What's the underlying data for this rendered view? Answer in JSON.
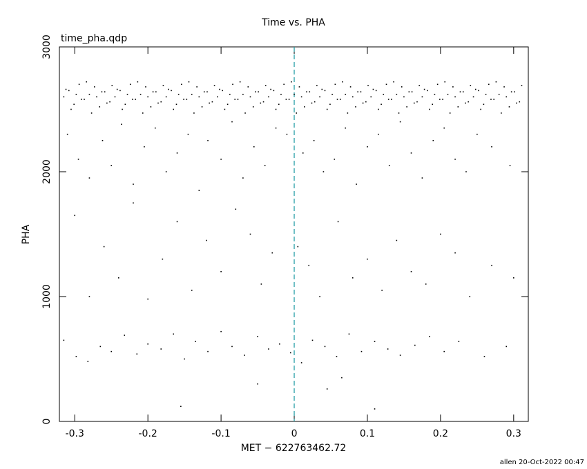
{
  "chart_data": {
    "type": "scatter",
    "title": "Time vs. PHA",
    "subtitle": "time_pha.qdp",
    "x_label": "MET − 622763462.72",
    "y_label": "PHA",
    "footer": "allen 20-Oct-2022 00:47",
    "color": "#000000",
    "xlim": [
      -0.321,
      0.32
    ],
    "ylim": [
      0,
      3000
    ],
    "xticks": [
      -0.3,
      -0.2,
      -0.1,
      0,
      0.1,
      0.2,
      0.3
    ],
    "yticks": [
      0,
      1000,
      2000,
      3000
    ],
    "reference_line": {
      "x": 0,
      "color": "#2aa0a8"
    },
    "x": [
      -0.315,
      -0.308,
      -0.301,
      -0.294,
      -0.287,
      -0.28,
      -0.273,
      -0.266,
      -0.259,
      -0.252,
      -0.245,
      -0.238,
      -0.231,
      -0.224,
      -0.217,
      -0.21,
      -0.203,
      -0.196,
      -0.189,
      -0.182,
      -0.175,
      -0.168,
      -0.161,
      -0.154,
      -0.147,
      -0.14,
      -0.133,
      -0.126,
      -0.119,
      -0.112,
      -0.105,
      -0.098,
      -0.091,
      -0.084,
      -0.077,
      -0.07,
      -0.063,
      -0.056,
      -0.049,
      -0.042,
      -0.035,
      -0.028,
      -0.021,
      -0.014,
      -0.007,
      0,
      0.007,
      0.014,
      0.021,
      0.028,
      0.035,
      0.042,
      0.049,
      0.056,
      0.063,
      0.07,
      0.077,
      0.084,
      0.091,
      0.098,
      0.105,
      0.112,
      0.119,
      0.126,
      0.133,
      0.14,
      0.147,
      0.154,
      0.161,
      0.168,
      0.175,
      0.182,
      0.189,
      0.196,
      0.203,
      0.21,
      0.217,
      0.224,
      0.231,
      0.238,
      0.245,
      0.252,
      0.259,
      0.266,
      0.273,
      0.28,
      0.287,
      0.294,
      0.301,
      0.308,
      -0.312,
      -0.305,
      -0.298,
      -0.291,
      -0.284,
      -0.277,
      -0.27,
      -0.263,
      -0.256,
      -0.249,
      -0.242,
      -0.235,
      -0.228,
      -0.221,
      -0.214,
      -0.207,
      -0.2,
      -0.193,
      -0.186,
      -0.179,
      -0.172,
      -0.165,
      -0.158,
      -0.151,
      -0.144,
      -0.137,
      -0.13,
      -0.123,
      -0.116,
      -0.109,
      -0.102,
      -0.095,
      -0.088,
      -0.081,
      -0.074,
      -0.067,
      -0.06,
      -0.053,
      -0.046,
      -0.039,
      -0.032,
      -0.025,
      -0.018,
      -0.011,
      -0.004,
      0.003,
      0.01,
      0.017,
      0.024,
      0.031,
      0.038,
      0.045,
      0.052,
      0.059,
      0.066,
      0.073,
      0.08,
      0.087,
      0.094,
      0.101,
      0.108,
      0.115,
      0.122,
      0.129,
      0.136,
      0.143,
      0.15,
      0.157,
      0.164,
      0.171,
      0.178,
      0.185,
      0.192,
      0.199,
      0.206,
      0.213,
      0.22,
      0.227,
      0.234,
      0.241,
      0.248,
      0.255,
      0.262,
      0.269,
      0.276,
      0.283,
      0.29,
      0.297,
      0.304,
      0.311,
      -0.31,
      -0.295,
      -0.28,
      -0.262,
      -0.25,
      -0.236,
      -0.22,
      -0.205,
      -0.19,
      -0.175,
      -0.16,
      -0.145,
      -0.13,
      -0.118,
      -0.1,
      -0.085,
      -0.07,
      -0.055,
      -0.04,
      -0.025,
      -0.01,
      0.012,
      0.027,
      0.04,
      0.055,
      0.07,
      0.085,
      0.1,
      0.115,
      0.13,
      0.145,
      0.16,
      0.175,
      0.19,
      0.205,
      0.22,
      0.235,
      0.25,
      0.27,
      0.295,
      -0.3,
      -0.28,
      -0.26,
      -0.24,
      -0.22,
      -0.2,
      -0.18,
      -0.16,
      -0.14,
      -0.12,
      -0.1,
      -0.08,
      -0.06,
      -0.045,
      -0.03,
      0.005,
      0.02,
      0.035,
      0.06,
      0.08,
      0.1,
      0.12,
      0.14,
      0.16,
      0.18,
      0.2,
      0.22,
      0.24,
      0.27,
      0.3,
      -0.315,
      -0.298,
      -0.282,
      -0.265,
      -0.25,
      -0.232,
      -0.215,
      -0.2,
      -0.182,
      -0.165,
      -0.15,
      -0.135,
      -0.118,
      -0.1,
      -0.085,
      -0.068,
      -0.05,
      -0.035,
      -0.02,
      -0.005,
      0.01,
      0.025,
      0.042,
      0.058,
      0.075,
      0.092,
      0.11,
      0.128,
      0.145,
      0.165,
      0.185,
      0.205,
      0.225,
      0.26,
      0.29,
      -0.155,
      -0.05,
      0.045,
      0.065,
      0.11
    ],
    "values": [
      2600,
      2650,
      2540,
      2700,
      2580,
      2620,
      2680,
      2520,
      2640,
      2560,
      2600,
      2650,
      2540,
      2700,
      2580,
      2620,
      2680,
      2520,
      2640,
      2560,
      2600,
      2650,
      2540,
      2700,
      2580,
      2620,
      2680,
      2520,
      2640,
      2560,
      2600,
      2650,
      2540,
      2700,
      2580,
      2620,
      2680,
      2520,
      2640,
      2560,
      2600,
      2650,
      2540,
      2700,
      2580,
      2620,
      2680,
      2520,
      2640,
      2560,
      2600,
      2650,
      2540,
      2700,
      2580,
      2620,
      2680,
      2520,
      2640,
      2560,
      2600,
      2650,
      2540,
      2700,
      2580,
      2620,
      2680,
      2520,
      2640,
      2560,
      2600,
      2650,
      2540,
      2700,
      2580,
      2620,
      2680,
      2520,
      2640,
      2560,
      2600,
      2650,
      2540,
      2700,
      2580,
      2620,
      2680,
      2520,
      2640,
      2560,
      2660,
      2500,
      2620,
      2580,
      2720,
      2470,
      2600,
      2640,
      2550,
      2690,
      2660,
      2500,
      2620,
      2580,
      2720,
      2470,
      2600,
      2640,
      2550,
      2690,
      2660,
      2500,
      2620,
      2580,
      2720,
      2470,
      2600,
      2640,
      2550,
      2690,
      2660,
      2500,
      2620,
      2580,
      2720,
      2470,
      2600,
      2640,
      2550,
      2690,
      2660,
      2500,
      2620,
      2580,
      2720,
      2470,
      2600,
      2640,
      2550,
      2690,
      2660,
      2500,
      2620,
      2580,
      2720,
      2470,
      2600,
      2640,
      2550,
      2690,
      2660,
      2500,
      2620,
      2580,
      2720,
      2470,
      2600,
      2640,
      2550,
      2690,
      2660,
      2500,
      2620,
      2580,
      2720,
      2470,
      2600,
      2640,
      2550,
      2690,
      2660,
      2500,
      2620,
      2580,
      2720,
      2470,
      2600,
      2640,
      2550,
      2690,
      2300,
      2100,
      1950,
      2250,
      2050,
      2380,
      1900,
      2200,
      2350,
      2000,
      2150,
      2300,
      1850,
      2250,
      2100,
      2400,
      1950,
      2200,
      2050,
      2350,
      2300,
      2150,
      2250,
      2000,
      2100,
      2350,
      1900,
      2200,
      2300,
      2050,
      2400,
      2150,
      1950,
      2250,
      2350,
      2100,
      2000,
      2300,
      2200,
      2050,
      1650,
      1000,
      1400,
      1150,
      1750,
      980,
      1300,
      1600,
      1050,
      1450,
      1200,
      1700,
      1500,
      1100,
      1350,
      1400,
      1250,
      1000,
      1600,
      1150,
      1300,
      1050,
      1450,
      1200,
      1100,
      1500,
      1350,
      1000,
      1250,
      1150,
      650,
      520,
      480,
      600,
      560,
      690,
      540,
      620,
      580,
      700,
      500,
      640,
      560,
      720,
      600,
      530,
      680,
      580,
      620,
      550,
      470,
      650,
      600,
      520,
      700,
      560,
      640,
      580,
      530,
      610,
      680,
      560,
      640,
      520,
      600,
      120,
      300,
      260,
      350,
      100
    ]
  }
}
